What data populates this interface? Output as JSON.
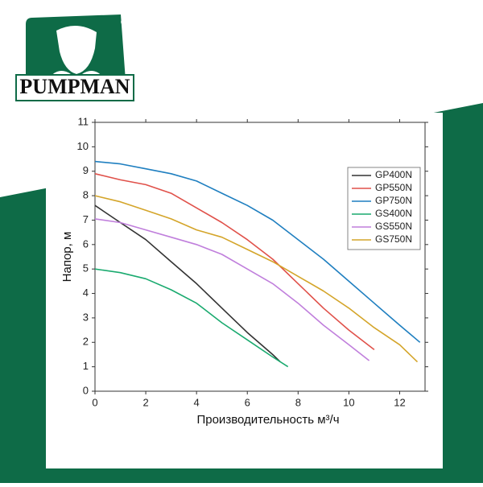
{
  "brand": {
    "name": "PUMPMAN",
    "mark": "®"
  },
  "chart_data": {
    "type": "line",
    "x_label": "Производительность м³/ч",
    "y_label": "Напор, м",
    "xlim": [
      0,
      13
    ],
    "ylim": [
      0,
      11
    ],
    "xticks": [
      0,
      2,
      4,
      6,
      8,
      10,
      12
    ],
    "yticks": [
      0,
      1,
      2,
      3,
      4,
      5,
      6,
      7,
      8,
      9,
      10,
      11
    ],
    "legend": "upper right",
    "series": [
      {
        "name": "GP400N",
        "color": "#333333",
        "x": [
          0,
          1,
          2,
          3,
          4,
          5,
          6,
          7,
          7.3
        ],
        "values": [
          7.6,
          6.9,
          6.2,
          5.3,
          4.4,
          3.4,
          2.4,
          1.5,
          1.2
        ]
      },
      {
        "name": "GP550N",
        "color": "#e0514a",
        "x": [
          0,
          1,
          2,
          3,
          4,
          5,
          6,
          7,
          8,
          9,
          10,
          11
        ],
        "values": [
          8.9,
          8.65,
          8.45,
          8.1,
          7.5,
          6.9,
          6.2,
          5.4,
          4.4,
          3.4,
          2.5,
          1.7
        ]
      },
      {
        "name": "GP750N",
        "color": "#1f7fc0",
        "x": [
          0,
          1,
          2,
          3,
          4,
          5,
          6,
          7,
          8,
          9,
          10,
          11,
          12,
          12.8
        ],
        "values": [
          9.4,
          9.3,
          9.1,
          8.9,
          8.6,
          8.1,
          7.6,
          7.0,
          6.2,
          5.4,
          4.5,
          3.6,
          2.7,
          2.0
        ]
      },
      {
        "name": "GS400N",
        "color": "#1aaa6f",
        "x": [
          0,
          1,
          2,
          3,
          4,
          5,
          6,
          7,
          7.6
        ],
        "values": [
          5.0,
          4.85,
          4.6,
          4.15,
          3.6,
          2.8,
          2.1,
          1.4,
          1.0
        ]
      },
      {
        "name": "GS550N",
        "color": "#c07fdc",
        "x": [
          0,
          1,
          2,
          3,
          4,
          5,
          6,
          7,
          8,
          9,
          10,
          10.8
        ],
        "values": [
          7.05,
          6.9,
          6.6,
          6.3,
          6.0,
          5.6,
          5.0,
          4.4,
          3.6,
          2.7,
          1.9,
          1.25
        ]
      },
      {
        "name": "GS750N",
        "color": "#d4a52a",
        "x": [
          0,
          1,
          2,
          3,
          4,
          5,
          6,
          7,
          8,
          9,
          10,
          11,
          12,
          12.7
        ],
        "values": [
          8.0,
          7.75,
          7.4,
          7.05,
          6.6,
          6.3,
          5.8,
          5.3,
          4.7,
          4.1,
          3.4,
          2.6,
          1.9,
          1.2
        ]
      }
    ]
  }
}
